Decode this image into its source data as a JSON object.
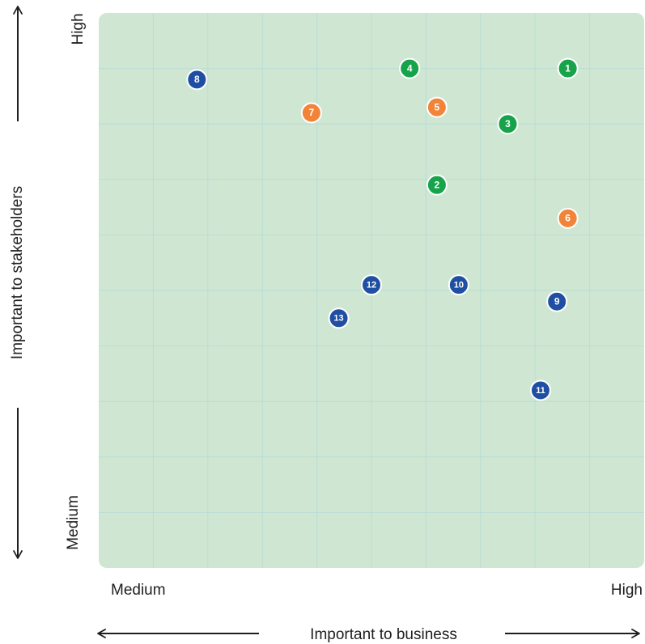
{
  "chart_data": {
    "type": "scatter",
    "title": "",
    "xlabel": "Important to business",
    "ylabel": "Important to stakeholders",
    "x_tick_labels": {
      "low": "Medium",
      "high": "High"
    },
    "y_tick_labels": {
      "low": "Medium",
      "high": "High"
    },
    "xlim": [
      0,
      10
    ],
    "ylim": [
      0,
      10
    ],
    "grid": true,
    "legend": "none",
    "colors": {
      "background": "#cfe7d2",
      "grid": "#b9dcd6",
      "green": "#17a34a",
      "orange": "#f2843a",
      "blue": "#1f4fa3"
    },
    "points": [
      {
        "label": "1",
        "x": 8.6,
        "y": 9.0,
        "color": "green"
      },
      {
        "label": "2",
        "x": 6.2,
        "y": 6.9,
        "color": "green"
      },
      {
        "label": "3",
        "x": 7.5,
        "y": 8.0,
        "color": "green"
      },
      {
        "label": "4",
        "x": 5.7,
        "y": 9.0,
        "color": "green"
      },
      {
        "label": "5",
        "x": 6.2,
        "y": 8.3,
        "color": "orange"
      },
      {
        "label": "6",
        "x": 8.6,
        "y": 6.3,
        "color": "orange"
      },
      {
        "label": "7",
        "x": 3.9,
        "y": 8.2,
        "color": "orange"
      },
      {
        "label": "8",
        "x": 1.8,
        "y": 8.8,
        "color": "blue"
      },
      {
        "label": "9",
        "x": 8.4,
        "y": 4.8,
        "color": "blue"
      },
      {
        "label": "10",
        "x": 6.6,
        "y": 5.1,
        "color": "blue"
      },
      {
        "label": "11",
        "x": 8.1,
        "y": 3.2,
        "color": "blue"
      },
      {
        "label": "12",
        "x": 5.0,
        "y": 5.1,
        "color": "blue"
      },
      {
        "label": "13",
        "x": 4.4,
        "y": 4.5,
        "color": "blue"
      }
    ]
  }
}
